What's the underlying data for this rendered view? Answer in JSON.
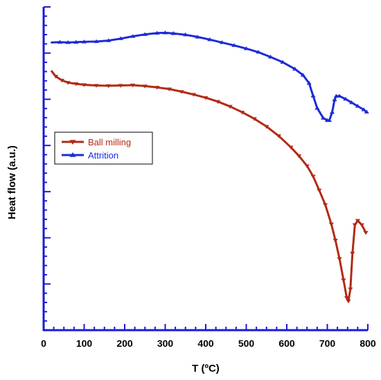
{
  "chart_data": {
    "type": "line",
    "title": "",
    "xlabel": "T (ºC)",
    "ylabel": "Heat flow (a.u.)",
    "xlim": [
      0,
      800
    ],
    "ylim": [
      0,
      100
    ],
    "x_ticks": [
      0,
      100,
      200,
      300,
      400,
      500,
      600,
      700,
      800
    ],
    "y_ticks_labeled": false,
    "grid": false,
    "axis_color": "#1a1ad6",
    "legend_position": "left-middle",
    "series": [
      {
        "name": "Ball milling",
        "color": "#b22a16",
        "marker": "triangle-down",
        "points": [
          [
            20,
            80.1
          ],
          [
            30,
            78.5
          ],
          [
            45,
            77.3
          ],
          [
            60,
            76.6
          ],
          [
            80,
            76.2
          ],
          [
            100,
            75.9
          ],
          [
            130,
            75.7
          ],
          [
            160,
            75.6
          ],
          [
            190,
            75.7
          ],
          [
            220,
            75.8
          ],
          [
            250,
            75.5
          ],
          [
            280,
            75.1
          ],
          [
            310,
            74.6
          ],
          [
            340,
            73.8
          ],
          [
            370,
            72.9
          ],
          [
            400,
            71.9
          ],
          [
            430,
            70.7
          ],
          [
            460,
            69.2
          ],
          [
            490,
            67.4
          ],
          [
            520,
            65.4
          ],
          [
            550,
            63.0
          ],
          [
            580,
            60.1
          ],
          [
            610,
            56.6
          ],
          [
            630,
            53.9
          ],
          [
            650,
            50.8
          ],
          [
            665,
            47.6
          ],
          [
            680,
            43.3
          ],
          [
            695,
            38.8
          ],
          [
            710,
            32.8
          ],
          [
            720,
            27.8
          ],
          [
            730,
            22.1
          ],
          [
            740,
            15.5
          ],
          [
            748,
            10.0
          ],
          [
            752,
            9.0
          ],
          [
            757,
            12.7
          ],
          [
            762,
            23.8
          ],
          [
            768,
            32.6
          ],
          [
            775,
            33.9
          ],
          [
            785,
            32.6
          ],
          [
            795,
            30.2
          ]
        ]
      },
      {
        "name": "Attrition",
        "color": "#1d2bd6",
        "marker": "triangle-up",
        "points": [
          [
            20,
            89.0
          ],
          [
            40,
            89.1
          ],
          [
            60,
            89.0
          ],
          [
            80,
            89.1
          ],
          [
            100,
            89.2
          ],
          [
            130,
            89.3
          ],
          [
            160,
            89.6
          ],
          [
            190,
            90.2
          ],
          [
            220,
            90.9
          ],
          [
            250,
            91.5
          ],
          [
            280,
            91.9
          ],
          [
            300,
            92.0
          ],
          [
            320,
            91.8
          ],
          [
            350,
            91.4
          ],
          [
            380,
            90.7
          ],
          [
            410,
            89.9
          ],
          [
            440,
            89.0
          ],
          [
            470,
            88.1
          ],
          [
            500,
            87.1
          ],
          [
            530,
            86.0
          ],
          [
            560,
            84.5
          ],
          [
            590,
            82.9
          ],
          [
            620,
            80.8
          ],
          [
            640,
            78.9
          ],
          [
            655,
            76.4
          ],
          [
            665,
            72.5
          ],
          [
            675,
            68.7
          ],
          [
            690,
            65.6
          ],
          [
            700,
            64.9
          ],
          [
            705,
            64.9
          ],
          [
            712,
            67.4
          ],
          [
            718,
            71.3
          ],
          [
            722,
            72.4
          ],
          [
            730,
            72.4
          ],
          [
            745,
            71.5
          ],
          [
            760,
            70.4
          ],
          [
            775,
            69.3
          ],
          [
            790,
            68.2
          ],
          [
            797,
            67.5
          ]
        ]
      }
    ]
  }
}
